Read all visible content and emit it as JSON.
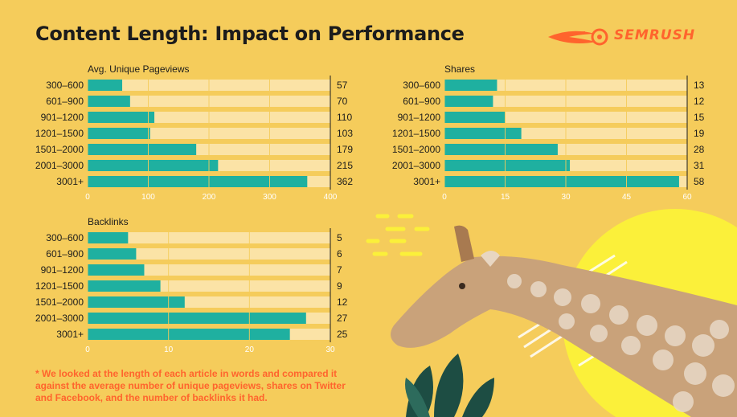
{
  "header": {
    "title": "Content Length: Impact on Performance",
    "brand": "SEMRUSH"
  },
  "colors": {
    "background": "#f5cc5b",
    "bar": "#1fb0a0",
    "track": "#fbe3a6",
    "brand": "#ff642d"
  },
  "chart_data": [
    {
      "type": "bar",
      "orientation": "horizontal",
      "title": "Avg. Unique Pageviews",
      "categories": [
        "300–600",
        "601–900",
        "901–1200",
        "1201–1500",
        "1501–2000",
        "2001–3000",
        "3001+"
      ],
      "values": [
        57,
        70,
        110,
        103,
        179,
        215,
        362
      ],
      "xlim": [
        0,
        400
      ],
      "xticks": [
        0,
        100,
        200,
        300,
        400
      ]
    },
    {
      "type": "bar",
      "orientation": "horizontal",
      "title": "Shares",
      "categories": [
        "300–600",
        "601–900",
        "901–1200",
        "1201–1500",
        "1501–2000",
        "2001–3000",
        "3001+"
      ],
      "values": [
        13,
        12,
        15,
        19,
        28,
        31,
        58
      ],
      "xlim": [
        0,
        60
      ],
      "xticks": [
        0,
        15,
        30,
        45,
        60
      ]
    },
    {
      "type": "bar",
      "orientation": "horizontal",
      "title": "Backlinks",
      "categories": [
        "300–600",
        "601–900",
        "901–1200",
        "1201–1500",
        "1501–2000",
        "2001–3000",
        "3001+"
      ],
      "values": [
        5,
        6,
        7,
        9,
        12,
        27,
        25
      ],
      "xlim": [
        0,
        30
      ],
      "xticks": [
        0,
        10,
        20,
        30
      ]
    }
  ],
  "footnote": "* We looked at the length of each article in words and compared it against the average number of unique pageviews, shares on Twitter and Facebook, and the number of backlinks it had."
}
